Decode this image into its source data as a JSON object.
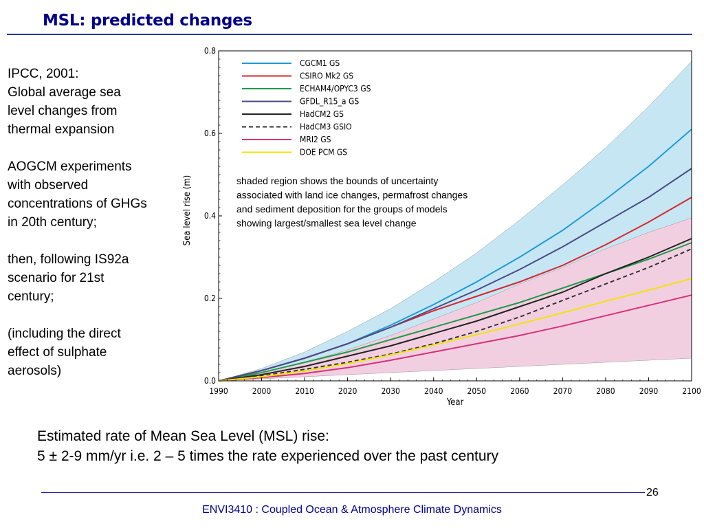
{
  "slide": {
    "title": "MSL: predicted changes",
    "left_paragraphs": [
      [
        "IPCC, 2001:",
        "Global average sea",
        "level changes from",
        "thermal expansion"
      ],
      [
        "AOGCM experiments",
        "with observed",
        "concentrations of GHGs",
        "in 20th century;"
      ],
      [
        "then, following IS92a",
        "scenario for 21st",
        "century;"
      ],
      [
        "(including the direct",
        "effect of sulphate",
        "aerosols)"
      ]
    ],
    "bottom_line1": "Estimated rate of Mean Sea Level (MSL) rise:",
    "bottom_line2": "5 ± 2-9 mm/yr  i.e.  2 – 5 times the rate experienced over the past century",
    "page_number": "26",
    "footer": "ENVI3410 : Coupled Ocean & Atmosphere Climate Dynamics"
  },
  "chart_data": {
    "type": "line",
    "xlabel": "Year",
    "ylabel": "Sea level rise (m)",
    "xlim": [
      1990,
      2100
    ],
    "ylim": [
      0,
      0.8
    ],
    "x_ticks": [
      1990,
      2000,
      2010,
      2020,
      2030,
      2040,
      2050,
      2060,
      2070,
      2080,
      2090,
      2100
    ],
    "y_tick_labels": [
      "0.0",
      "0.2",
      "0.4",
      "0.6",
      "0.8"
    ],
    "legend_position": "top-left",
    "annotation": [
      "shaded region shows the bounds of uncertainty",
      "associated with land ice changes, permafrost changes",
      "and sediment deposition for the groups of models",
      "showing largest/smallest sea level change"
    ],
    "x": [
      1990,
      2000,
      2010,
      2020,
      2030,
      2040,
      2050,
      2060,
      2070,
      2080,
      2090,
      2100
    ],
    "series": [
      {
        "name": "CGCM1 GS",
        "color": "#1e9ad6",
        "dash": false,
        "values": [
          0.0,
          0.025,
          0.055,
          0.09,
          0.135,
          0.185,
          0.24,
          0.3,
          0.365,
          0.44,
          0.52,
          0.61
        ]
      },
      {
        "name": "CSIRO Mk2 GS",
        "color": "#d9262c",
        "dash": false,
        "values": [
          0.0,
          0.025,
          0.055,
          0.09,
          0.13,
          0.17,
          0.205,
          0.24,
          0.28,
          0.33,
          0.385,
          0.445
        ]
      },
      {
        "name": "ECHAM4/OPYC3 GS",
        "color": "#1f9b4a",
        "dash": false,
        "values": [
          0.0,
          0.02,
          0.045,
          0.07,
          0.1,
          0.13,
          0.16,
          0.19,
          0.225,
          0.26,
          0.295,
          0.335
        ]
      },
      {
        "name": "GFDL_R15_a GS",
        "color": "#4a4a88",
        "dash": false,
        "values": [
          0.0,
          0.025,
          0.055,
          0.09,
          0.13,
          0.175,
          0.22,
          0.27,
          0.325,
          0.385,
          0.445,
          0.515
        ]
      },
      {
        "name": "HadCM2 GS",
        "color": "#222222",
        "dash": false,
        "values": [
          0.0,
          0.015,
          0.035,
          0.06,
          0.085,
          0.115,
          0.145,
          0.18,
          0.215,
          0.26,
          0.3,
          0.345
        ]
      },
      {
        "name": "HadCM3 GSIO",
        "color": "#333333",
        "dash": true,
        "values": [
          0.0,
          0.012,
          0.028,
          0.045,
          0.065,
          0.09,
          0.12,
          0.155,
          0.195,
          0.235,
          0.275,
          0.32
        ]
      },
      {
        "name": "MRI2 GS",
        "color": "#d6307a",
        "dash": false,
        "values": [
          0.0,
          0.008,
          0.018,
          0.032,
          0.05,
          0.07,
          0.09,
          0.11,
          0.133,
          0.158,
          0.183,
          0.208
        ]
      },
      {
        "name": "DOE PCM GS",
        "color": "#f2e400",
        "dash": false,
        "values": [
          0.0,
          0.01,
          0.024,
          0.042,
          0.063,
          0.087,
          0.112,
          0.138,
          0.165,
          0.193,
          0.22,
          0.248
        ]
      }
    ],
    "upper_band": {
      "color": "#c5e6f2",
      "upper": [
        0.0,
        0.03,
        0.07,
        0.12,
        0.175,
        0.24,
        0.31,
        0.39,
        0.475,
        0.565,
        0.665,
        0.775
      ],
      "lower": [
        0.0,
        0.02,
        0.045,
        0.073,
        0.105,
        0.14,
        0.175,
        0.21,
        0.245,
        0.27,
        0.3,
        0.33
      ]
    },
    "lower_band": {
      "color": "#f2cfe0",
      "upper": [
        0.0,
        0.02,
        0.045,
        0.075,
        0.11,
        0.15,
        0.19,
        0.235,
        0.275,
        0.32,
        0.36,
        0.395
      ],
      "lower": [
        0.0,
        0.005,
        0.01,
        0.015,
        0.02,
        0.025,
        0.03,
        0.035,
        0.04,
        0.045,
        0.05,
        0.055
      ]
    }
  }
}
